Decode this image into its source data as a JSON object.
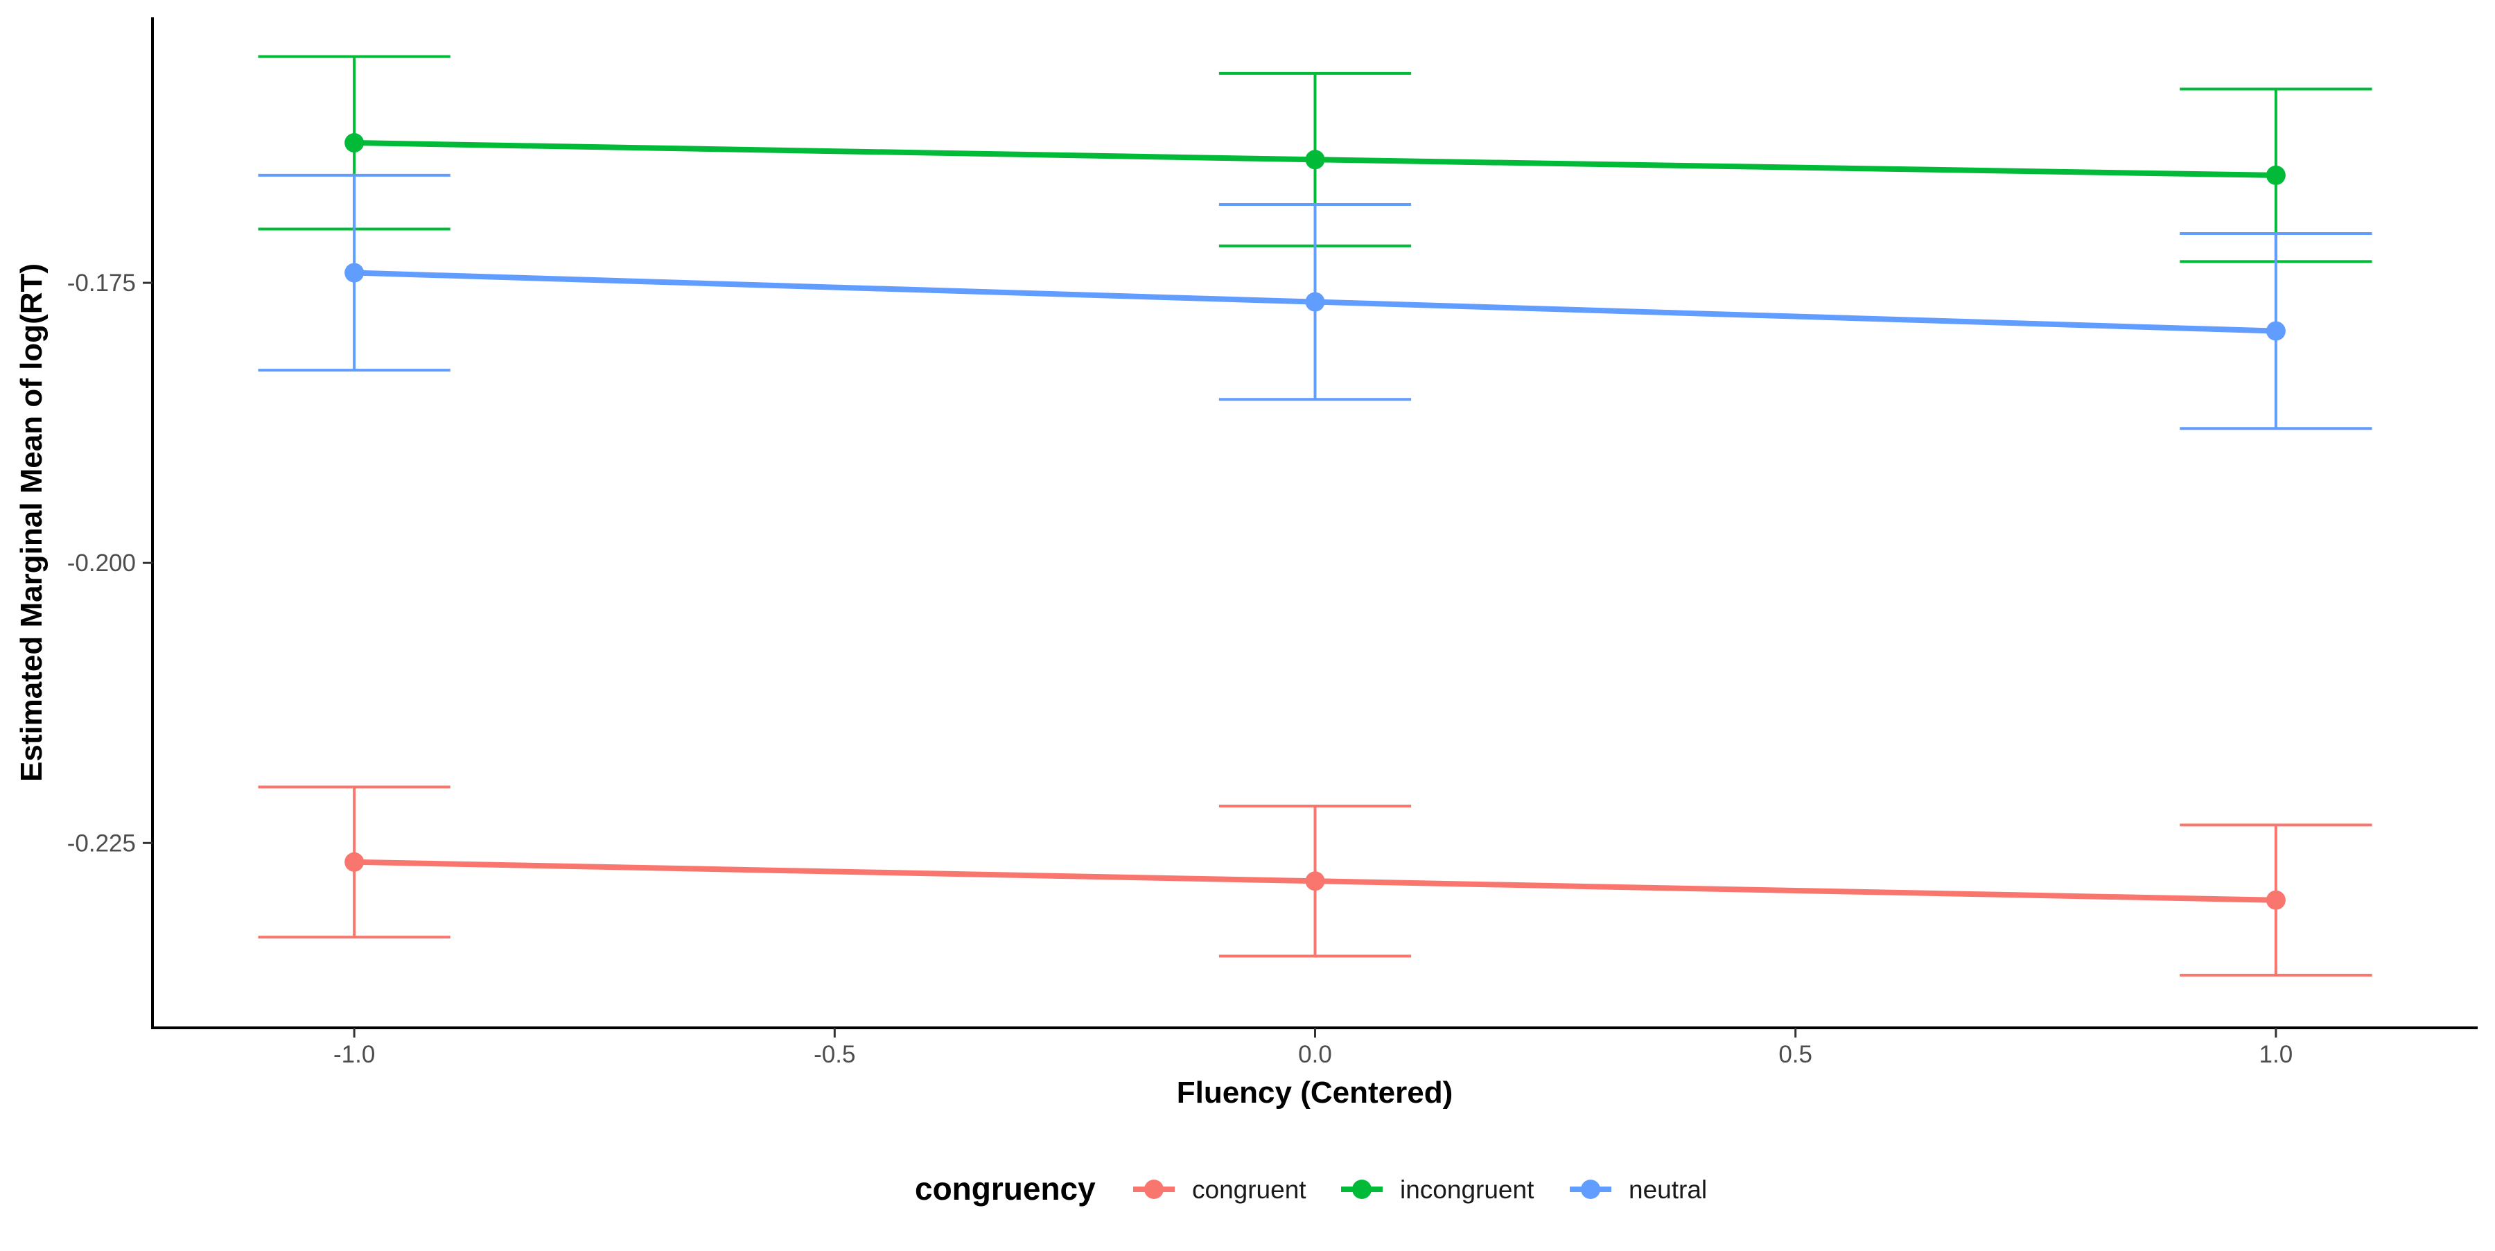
{
  "chart_data": {
    "type": "line",
    "xlabel": "Fluency (Centered)",
    "ylabel": "Estimated Marginal Mean of log(RT)",
    "x": [
      -1.0,
      0.0,
      1.0
    ],
    "xlim": [
      -1.21,
      1.21
    ],
    "ylim": [
      -0.2415,
      -0.1513
    ],
    "x_ticks": [
      -1.0,
      -0.5,
      0.0,
      0.5,
      1.0
    ],
    "x_tick_labels": [
      "-1.0",
      "-0.5",
      "0.0",
      "0.5",
      "1.0"
    ],
    "y_ticks": [
      -0.175,
      -0.2,
      -0.225
    ],
    "y_tick_labels": [
      "-0.175",
      "-0.200",
      "-0.225"
    ],
    "grid": false,
    "legend": {
      "title": "congruency",
      "position": "bottom"
    },
    "series": [
      {
        "name": "congruent",
        "color": "#F8766D",
        "values": [
          -0.2267,
          -0.2284,
          -0.2301
        ],
        "lower": [
          -0.2334,
          -0.2351,
          -0.2368
        ],
        "upper": [
          -0.22,
          -0.2217,
          -0.2234
        ]
      },
      {
        "name": "incongruent",
        "color": "#00BA38",
        "values": [
          -0.1625,
          -0.164,
          -0.1654
        ],
        "lower": [
          -0.1702,
          -0.1717,
          -0.1731
        ],
        "upper": [
          -0.1548,
          -0.1563,
          -0.1577
        ]
      },
      {
        "name": "neutral",
        "color": "#619CFF",
        "values": [
          -0.1741,
          -0.1767,
          -0.1793
        ],
        "lower": [
          -0.1828,
          -0.1854,
          -0.188
        ],
        "upper": [
          -0.1654,
          -0.168,
          -0.1706
        ]
      }
    ]
  }
}
